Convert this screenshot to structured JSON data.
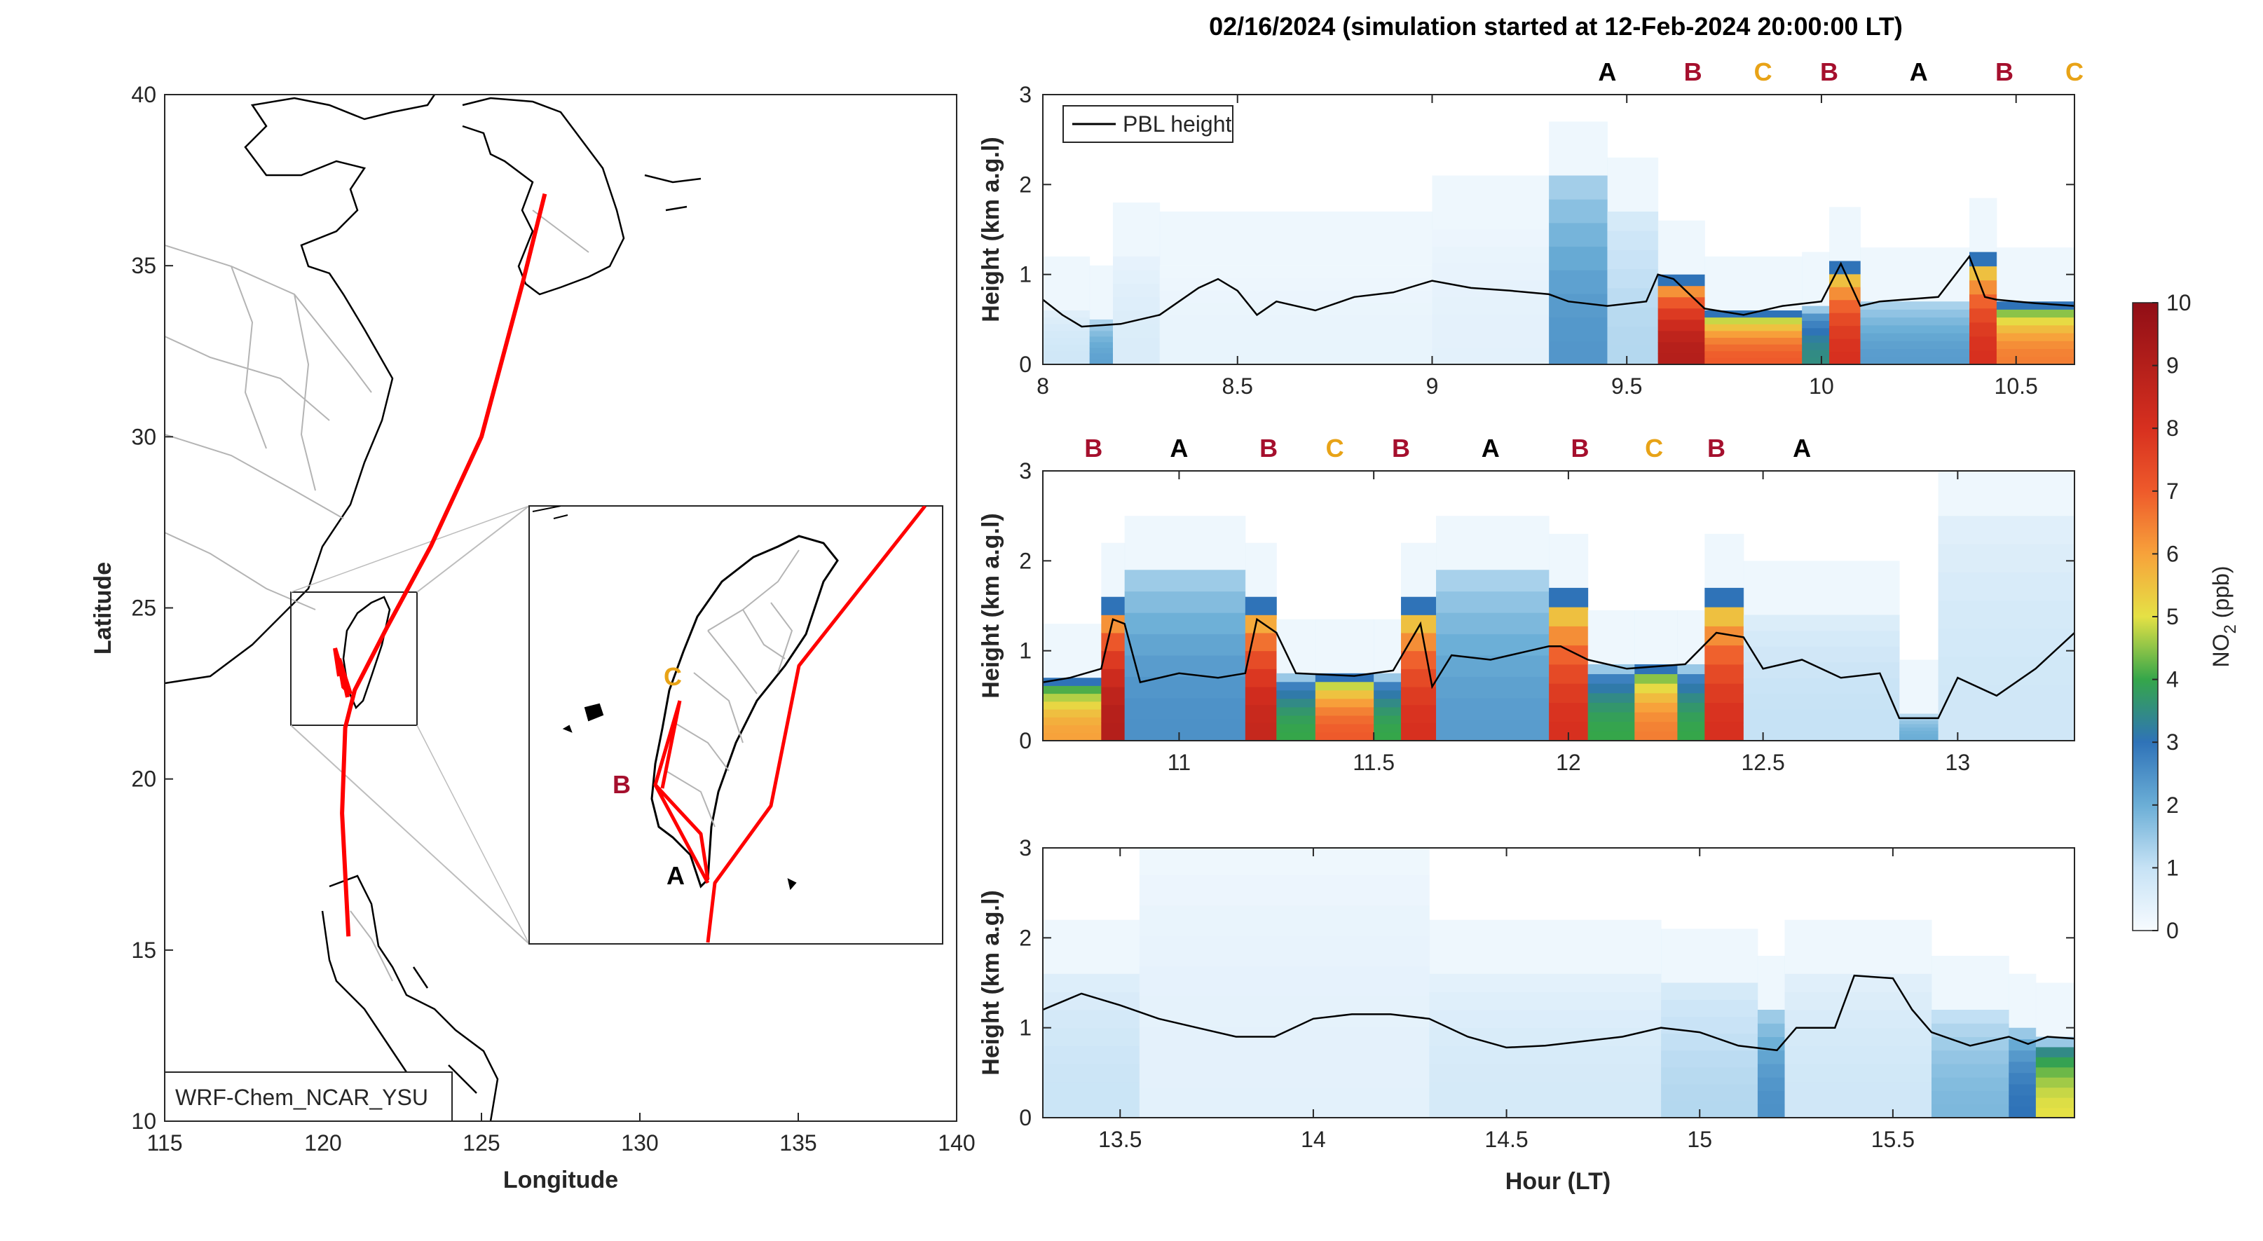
{
  "figure_title": "02/16/2024 (simulation started at 12-Feb-2024 20:00:00 LT)",
  "colors": {
    "route": "#ff0000",
    "marker_A": "#000000",
    "marker_B": "#a50f2d",
    "marker_C": "#e8a317",
    "coast": "#000000",
    "borders": "#b4b4b4",
    "pbl_line": "#000000"
  },
  "map": {
    "xlabel": "Longitude",
    "ylabel": "Latitude",
    "xticks": [
      115,
      120,
      125,
      130,
      135,
      140
    ],
    "yticks": [
      10,
      15,
      20,
      25,
      30,
      35,
      40
    ],
    "xlim": [
      115,
      140
    ],
    "ylim": [
      10,
      40
    ],
    "model_label": "WRF-Chem_NCAR_YSU",
    "route_lonlat": [
      [
        127.0,
        37.1
      ],
      [
        126.3,
        34.5
      ],
      [
        125.0,
        30.0
      ],
      [
        123.4,
        26.8
      ],
      [
        122.0,
        24.4
      ],
      [
        121.0,
        22.6
      ],
      [
        120.7,
        21.5
      ],
      [
        120.6,
        19.0
      ],
      [
        120.8,
        15.4
      ]
    ],
    "inset_markers": [
      {
        "text": "C",
        "type": "C"
      },
      {
        "text": "B",
        "type": "B"
      },
      {
        "text": "A",
        "type": "A"
      }
    ]
  },
  "chart_data": [
    {
      "type": "heatmap",
      "title": "",
      "ylabel": "Height (km a.g.l)",
      "xlabel": "",
      "xlim": [
        8.0,
        10.65
      ],
      "ylim": [
        0,
        3
      ],
      "xticks": [
        8,
        8.5,
        9,
        9.5,
        10,
        10.5
      ],
      "yticks": [
        0,
        1,
        2,
        3
      ],
      "legend": "top-left",
      "series_name": "PBL height",
      "flight_markers": [
        {
          "label": "A",
          "type": "A",
          "x": 9.45
        },
        {
          "label": "B",
          "type": "B",
          "x": 9.67
        },
        {
          "label": "C",
          "type": "C",
          "x": 9.85
        },
        {
          "label": "B",
          "type": "B",
          "x": 10.02
        },
        {
          "label": "A",
          "type": "A",
          "x": 10.25
        },
        {
          "label": "B",
          "type": "B",
          "x": 10.47
        },
        {
          "label": "C",
          "type": "C",
          "x": 10.65
        }
      ],
      "pbl": {
        "x": [
          8.0,
          8.05,
          8.1,
          8.2,
          8.3,
          8.4,
          8.45,
          8.5,
          8.55,
          8.6,
          8.7,
          8.8,
          8.9,
          9.0,
          9.1,
          9.2,
          9.3,
          9.35,
          9.45,
          9.55,
          9.58,
          9.62,
          9.7,
          9.8,
          9.9,
          10.0,
          10.05,
          10.1,
          10.15,
          10.3,
          10.38,
          10.42,
          10.45,
          10.55,
          10.65
        ],
        "y": [
          0.72,
          0.55,
          0.42,
          0.45,
          0.55,
          0.85,
          0.95,
          0.82,
          0.55,
          0.7,
          0.6,
          0.75,
          0.8,
          0.93,
          0.85,
          0.82,
          0.78,
          0.7,
          0.65,
          0.7,
          1.0,
          0.95,
          0.62,
          0.55,
          0.65,
          0.7,
          1.12,
          0.65,
          0.7,
          0.75,
          1.2,
          0.75,
          0.72,
          0.68,
          0.65
        ]
      },
      "no2_columns": [
        {
          "x0": 8.0,
          "x1": 8.12,
          "top": 0.6,
          "value": 0.8
        },
        {
          "x0": 8.12,
          "x1": 8.18,
          "top": 0.5,
          "value": 2.2
        },
        {
          "x0": 8.18,
          "x1": 8.3,
          "top": 1.2,
          "value": 0.6
        },
        {
          "x0": 8.3,
          "x1": 9.0,
          "top": 1.1,
          "value": 0.3
        },
        {
          "x0": 9.0,
          "x1": 9.3,
          "top": 1.5,
          "value": 0.4
        },
        {
          "x0": 9.3,
          "x1": 9.45,
          "top": 2.1,
          "value": 2.4
        },
        {
          "x0": 9.45,
          "x1": 9.58,
          "top": 1.7,
          "value": 1.2
        },
        {
          "x0": 9.58,
          "x1": 9.7,
          "top": 1.0,
          "value": 9.0
        },
        {
          "x0": 9.7,
          "x1": 9.95,
          "top": 0.6,
          "value": 7.0
        },
        {
          "x0": 9.95,
          "x1": 10.02,
          "top": 0.65,
          "value": 3.5
        },
        {
          "x0": 10.02,
          "x1": 10.1,
          "top": 1.15,
          "value": 8.0
        },
        {
          "x0": 10.1,
          "x1": 10.38,
          "top": 0.7,
          "value": 2.3
        },
        {
          "x0": 10.38,
          "x1": 10.45,
          "top": 1.25,
          "value": 8.0
        },
        {
          "x0": 10.45,
          "x1": 10.65,
          "top": 0.7,
          "value": 6.5
        }
      ]
    },
    {
      "type": "heatmap",
      "title": "",
      "ylabel": "Height (km a.g.l)",
      "xlabel": "",
      "xlim": [
        10.65,
        13.3
      ],
      "ylim": [
        0,
        3
      ],
      "xticks": [
        11,
        11.5,
        12,
        12.5,
        13
      ],
      "yticks": [
        0,
        1,
        2,
        3
      ],
      "flight_markers": [
        {
          "label": "B",
          "type": "B",
          "x": 10.78
        },
        {
          "label": "A",
          "type": "A",
          "x": 11.0
        },
        {
          "label": "B",
          "type": "B",
          "x": 11.23
        },
        {
          "label": "C",
          "type": "C",
          "x": 11.4
        },
        {
          "label": "B",
          "type": "B",
          "x": 11.57
        },
        {
          "label": "A",
          "type": "A",
          "x": 11.8
        },
        {
          "label": "B",
          "type": "B",
          "x": 12.03
        },
        {
          "label": "C",
          "type": "C",
          "x": 12.22
        },
        {
          "label": "B",
          "type": "B",
          "x": 12.38
        },
        {
          "label": "A",
          "type": "A",
          "x": 12.6
        }
      ],
      "pbl": {
        "x": [
          10.65,
          10.72,
          10.8,
          10.83,
          10.86,
          10.9,
          11.0,
          11.1,
          11.17,
          11.2,
          11.25,
          11.3,
          11.45,
          11.55,
          11.62,
          11.65,
          11.7,
          11.8,
          11.9,
          11.95,
          11.98,
          12.05,
          12.15,
          12.3,
          12.38,
          12.45,
          12.5,
          12.6,
          12.7,
          12.8,
          12.85,
          12.95,
          13.0,
          13.1,
          13.2,
          13.3
        ],
        "y": [
          0.65,
          0.7,
          0.8,
          1.35,
          1.3,
          0.65,
          0.75,
          0.7,
          0.75,
          1.35,
          1.2,
          0.75,
          0.72,
          0.78,
          1.3,
          0.6,
          0.95,
          0.9,
          1.0,
          1.05,
          1.05,
          0.9,
          0.8,
          0.85,
          1.2,
          1.15,
          0.8,
          0.9,
          0.7,
          0.75,
          0.25,
          0.25,
          0.7,
          0.5,
          0.8,
          1.2
        ]
      },
      "no2_columns": [
        {
          "x0": 10.65,
          "x1": 10.8,
          "top": 0.7,
          "value": 6.0
        },
        {
          "x0": 10.8,
          "x1": 10.86,
          "top": 1.6,
          "value": 9.0
        },
        {
          "x0": 10.86,
          "x1": 11.17,
          "top": 1.9,
          "value": 2.5
        },
        {
          "x0": 11.17,
          "x1": 11.25,
          "top": 1.6,
          "value": 8.5
        },
        {
          "x0": 11.25,
          "x1": 11.35,
          "top": 0.75,
          "value": 4.0
        },
        {
          "x0": 11.35,
          "x1": 11.5,
          "top": 0.75,
          "value": 7.0
        },
        {
          "x0": 11.5,
          "x1": 11.57,
          "top": 0.75,
          "value": 4.0
        },
        {
          "x0": 11.57,
          "x1": 11.66,
          "top": 1.6,
          "value": 8.0
        },
        {
          "x0": 11.66,
          "x1": 11.95,
          "top": 1.9,
          "value": 2.3
        },
        {
          "x0": 11.95,
          "x1": 12.05,
          "top": 1.7,
          "value": 8.0
        },
        {
          "x0": 12.05,
          "x1": 12.17,
          "top": 0.85,
          "value": 4.0
        },
        {
          "x0": 12.17,
          "x1": 12.28,
          "top": 0.85,
          "value": 6.5
        },
        {
          "x0": 12.28,
          "x1": 12.35,
          "top": 0.85,
          "value": 4.0
        },
        {
          "x0": 12.35,
          "x1": 12.45,
          "top": 1.7,
          "value": 8.0
        },
        {
          "x0": 12.45,
          "x1": 12.85,
          "top": 1.4,
          "value": 1.0
        },
        {
          "x0": 12.85,
          "x1": 12.95,
          "top": 0.3,
          "value": 2.0
        },
        {
          "x0": 12.95,
          "x1": 13.3,
          "top": 2.5,
          "value": 0.8
        }
      ]
    },
    {
      "type": "heatmap",
      "title": "",
      "ylabel": "Height (km a.g.l)",
      "xlabel": "Hour (LT)",
      "xlim": [
        13.3,
        15.97
      ],
      "ylim": [
        0,
        3
      ],
      "xticks": [
        13.5,
        14,
        14.5,
        15,
        15.5
      ],
      "yticks": [
        0,
        1,
        2,
        3
      ],
      "flight_markers": [],
      "pbl": {
        "x": [
          13.3,
          13.4,
          13.5,
          13.6,
          13.7,
          13.8,
          13.9,
          14.0,
          14.1,
          14.2,
          14.3,
          14.4,
          14.5,
          14.6,
          14.7,
          14.8,
          14.9,
          15.0,
          15.1,
          15.2,
          15.25,
          15.35,
          15.4,
          15.5,
          15.55,
          15.6,
          15.7,
          15.8,
          15.85,
          15.9,
          15.97
        ],
        "y": [
          1.2,
          1.38,
          1.25,
          1.1,
          1.0,
          0.9,
          0.9,
          1.1,
          1.15,
          1.15,
          1.1,
          0.9,
          0.78,
          0.8,
          0.85,
          0.9,
          1.0,
          0.95,
          0.8,
          0.75,
          1.0,
          1.0,
          1.58,
          1.55,
          1.2,
          0.95,
          0.8,
          0.9,
          0.82,
          0.9,
          0.88
        ]
      },
      "no2_columns": [
        {
          "x0": 13.3,
          "x1": 13.55,
          "top": 1.6,
          "value": 0.9
        },
        {
          "x0": 13.55,
          "x1": 14.3,
          "top": 2.7,
          "value": 0.4
        },
        {
          "x0": 14.3,
          "x1": 14.9,
          "top": 1.6,
          "value": 0.7
        },
        {
          "x0": 14.9,
          "x1": 15.15,
          "top": 1.5,
          "value": 1.2
        },
        {
          "x0": 15.15,
          "x1": 15.22,
          "top": 1.2,
          "value": 2.5
        },
        {
          "x0": 15.22,
          "x1": 15.6,
          "top": 1.6,
          "value": 0.8
        },
        {
          "x0": 15.6,
          "x1": 15.8,
          "top": 1.2,
          "value": 1.8
        },
        {
          "x0": 15.8,
          "x1": 15.87,
          "top": 1.0,
          "value": 3.0
        },
        {
          "x0": 15.87,
          "x1": 15.97,
          "top": 0.9,
          "value": 5.0
        }
      ]
    }
  ],
  "colorbar": {
    "label": "NO",
    "label_sub": "2",
    "label_suffix": " (ppb)",
    "min": 0,
    "max": 10,
    "ticks": [
      0,
      1,
      2,
      3,
      4,
      5,
      6,
      7,
      8,
      9,
      10
    ]
  }
}
